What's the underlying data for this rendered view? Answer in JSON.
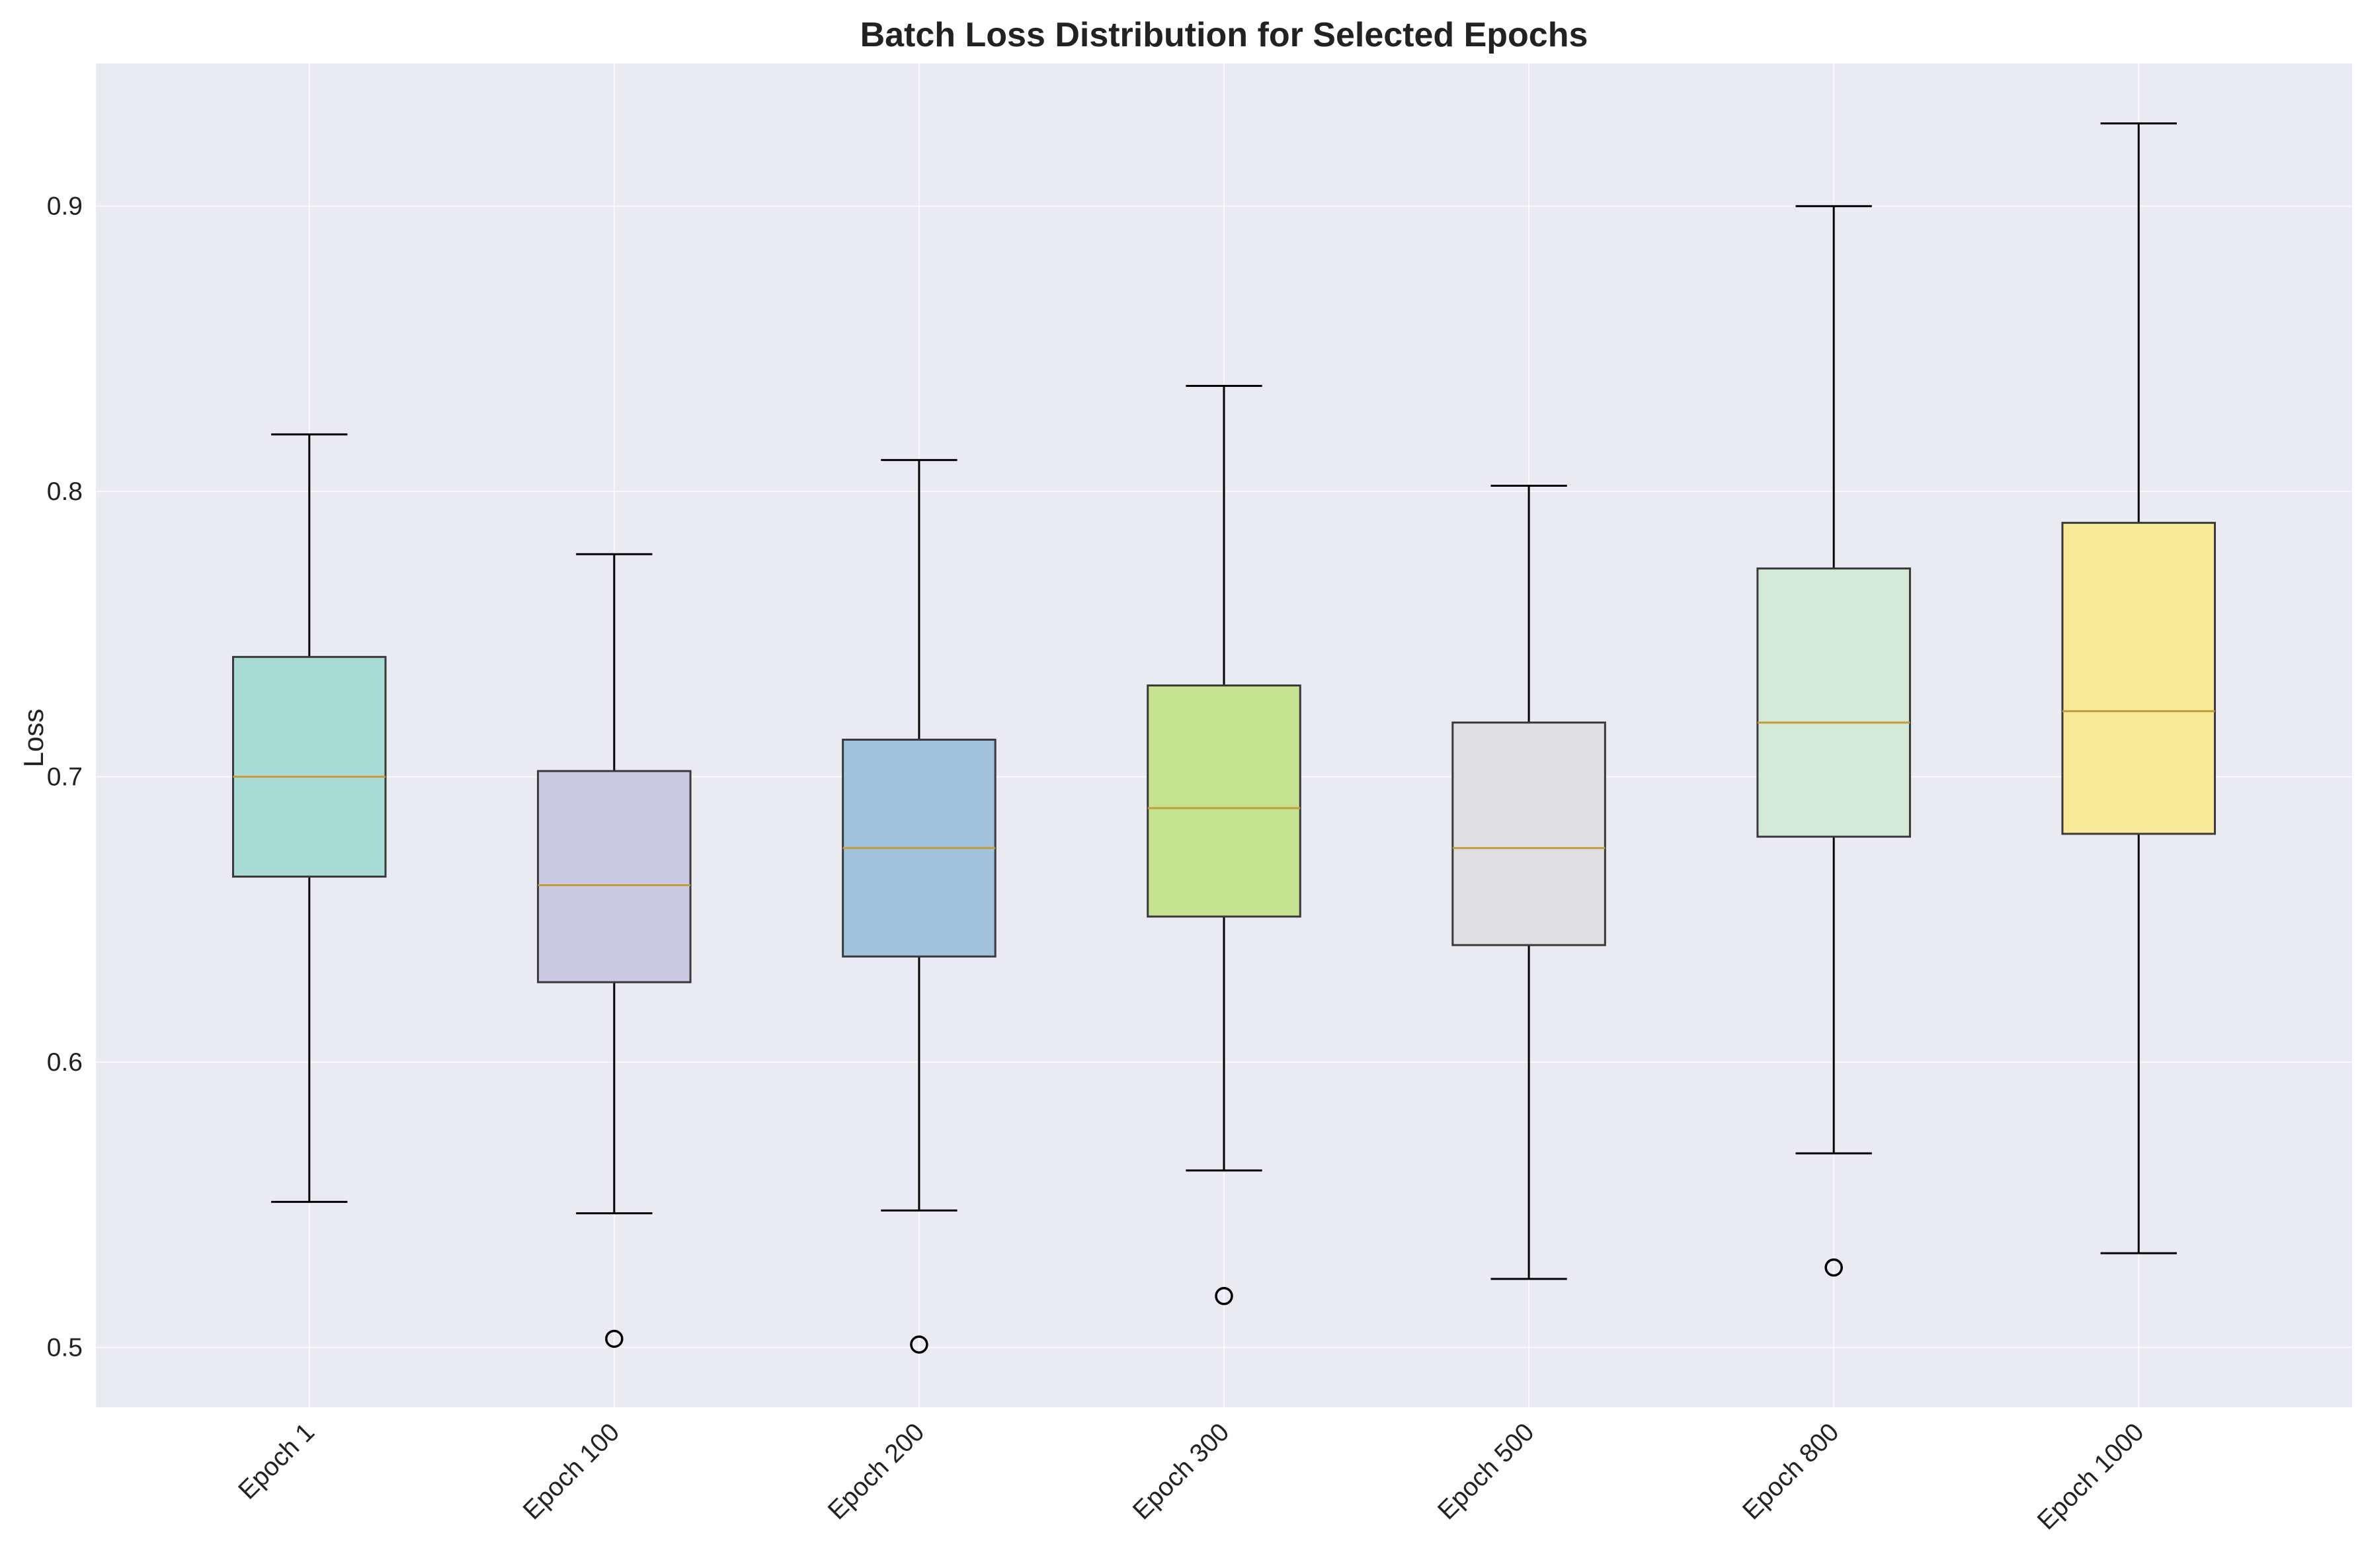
{
  "chart_data": {
    "type": "boxplot",
    "title": "Batch Loss Distribution for Selected Epochs",
    "xlabel": "",
    "ylabel": "Loss",
    "ylim": [
      0.479,
      0.95
    ],
    "yticks": [
      0.5,
      0.6,
      0.7,
      0.8,
      0.9
    ],
    "ytick_labels": [
      "0.5",
      "0.6",
      "0.7",
      "0.8",
      "0.9"
    ],
    "categories": [
      "Epoch 1",
      "Epoch 100",
      "Epoch 200",
      "Epoch 300",
      "Epoch 500",
      "Epoch 800",
      "Epoch 1000"
    ],
    "boxes": [
      {
        "label": "Epoch 1",
        "whisker_low": 0.551,
        "q1": 0.665,
        "median": 0.7,
        "q3": 0.742,
        "whisker_high": 0.82,
        "outliers": [],
        "color": "#a8dbd5"
      },
      {
        "label": "Epoch 100",
        "whisker_low": 0.547,
        "q1": 0.628,
        "median": 0.662,
        "q3": 0.702,
        "whisker_high": 0.778,
        "outliers": [
          0.503
        ],
        "color": "#cbcae2"
      },
      {
        "label": "Epoch 200",
        "whisker_low": 0.548,
        "q1": 0.637,
        "median": 0.675,
        "q3": 0.713,
        "whisker_high": 0.811,
        "outliers": [
          0.501
        ],
        "color": "#a0c2dd"
      },
      {
        "label": "Epoch 300",
        "whisker_low": 0.562,
        "q1": 0.651,
        "median": 0.689,
        "q3": 0.732,
        "whisker_high": 0.837,
        "outliers": [
          0.518
        ],
        "color": "#c4e28f"
      },
      {
        "label": "Epoch 500",
        "whisker_low": 0.524,
        "q1": 0.641,
        "median": 0.675,
        "q3": 0.719,
        "whisker_high": 0.802,
        "outliers": [],
        "color": "#dfdfe3"
      },
      {
        "label": "Epoch 800",
        "whisker_low": 0.568,
        "q1": 0.679,
        "median": 0.719,
        "q3": 0.773,
        "whisker_high": 0.9,
        "outliers": [
          0.528
        ],
        "color": "#d3ead6"
      },
      {
        "label": "Epoch 1000",
        "whisker_low": 0.533,
        "q1": 0.68,
        "median": 0.723,
        "q3": 0.789,
        "whisker_high": 0.929,
        "outliers": [],
        "color": "#f8ea98"
      }
    ],
    "median_color": "#c49a3c",
    "plot_background": "#eaeaf2",
    "grid": true,
    "legend": "none"
  }
}
